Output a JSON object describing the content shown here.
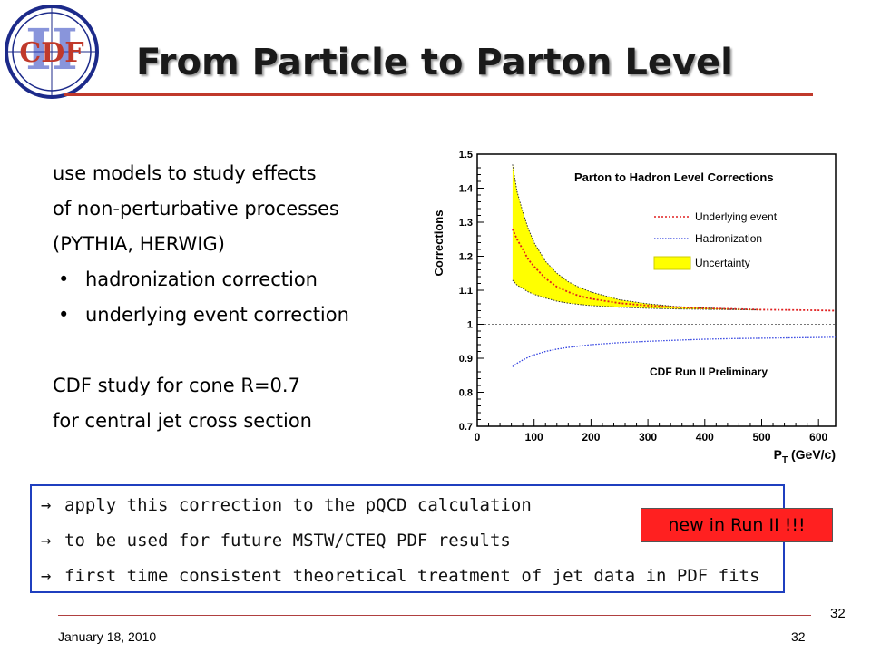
{
  "slide": {
    "title": "From Particle to Parton Level",
    "logo_text": "CDF",
    "logo_numeral": "II",
    "intro_lines": [
      "use models to study effects",
      "of non-perturbative processes",
      "(PYTHIA, HERWIG)"
    ],
    "bullets": [
      "hadronization correction",
      "underlying event correction"
    ],
    "study_lines": [
      "CDF study for cone R=0.7",
      "for central jet cross section"
    ],
    "callout_lines": [
      "apply this correction to the pQCD calculation",
      "to be used for future MSTW/CTEQ PDF results",
      "first time consistent theoretical treatment of jet data in PDF fits"
    ],
    "badge": "new in Run II !!!",
    "footer_date": "January 18, 2010",
    "footer_page": "32",
    "page_number": "32",
    "colors": {
      "title_rule": "#c0392b",
      "callout_border": "#1f3fbf",
      "badge_bg": "#ff2020",
      "logo_ring": "#1c2a8a",
      "logo_letters": "#c0392b"
    }
  },
  "chart_data": {
    "type": "line",
    "title": "Parton to Hadron Level Corrections",
    "subtitle": "CDF Run II Preliminary",
    "xlabel_main": "P",
    "xlabel_sub": "T",
    "xlabel_unit": " (GeV/c)",
    "ylabel": "Corrections",
    "xlim": [
      0,
      630
    ],
    "ylim": [
      0.7,
      1.5
    ],
    "xticks": [
      0,
      100,
      200,
      300,
      400,
      500,
      600
    ],
    "yticks": [
      0.7,
      0.8,
      0.9,
      1,
      1.1,
      1.2,
      1.3,
      1.4,
      1.5
    ],
    "reference_line": 1,
    "legend": [
      "Underlying event",
      "Hadronization",
      "Uncertainty"
    ],
    "series": [
      {
        "name": "Underlying event",
        "color": "#e02020",
        "style": "dotted",
        "x": [
          62,
          70,
          80,
          90,
          100,
          120,
          140,
          160,
          180,
          200,
          250,
          300,
          350,
          400,
          450,
          500,
          550,
          600,
          630
        ],
        "y": [
          1.28,
          1.25,
          1.22,
          1.19,
          1.17,
          1.135,
          1.11,
          1.095,
          1.083,
          1.075,
          1.062,
          1.055,
          1.05,
          1.047,
          1.045,
          1.043,
          1.042,
          1.041,
          1.04
        ]
      },
      {
        "name": "Hadronization",
        "color": "#3040e0",
        "style": "dotted",
        "x": [
          62,
          70,
          80,
          90,
          100,
          120,
          140,
          160,
          180,
          200,
          250,
          300,
          350,
          400,
          450,
          500,
          550,
          600,
          630
        ],
        "y": [
          0.875,
          0.885,
          0.895,
          0.903,
          0.91,
          0.92,
          0.927,
          0.932,
          0.936,
          0.94,
          0.946,
          0.95,
          0.953,
          0.956,
          0.958,
          0.959,
          0.96,
          0.961,
          0.962
        ]
      }
    ],
    "band": {
      "name": "Uncertainty",
      "color": "#ffff00",
      "x": [
        62,
        70,
        80,
        90,
        100,
        120,
        140,
        160,
        180,
        200,
        250,
        300,
        350,
        400,
        450,
        500
      ],
      "upper": [
        1.47,
        1.39,
        1.33,
        1.28,
        1.24,
        1.185,
        1.15,
        1.125,
        1.108,
        1.095,
        1.072,
        1.06,
        1.052,
        1.048,
        1.045,
        1.043
      ],
      "lower": [
        1.13,
        1.115,
        1.105,
        1.095,
        1.088,
        1.077,
        1.068,
        1.062,
        1.058,
        1.055,
        1.05,
        1.047,
        1.045,
        1.044,
        1.043,
        1.042
      ]
    }
  }
}
